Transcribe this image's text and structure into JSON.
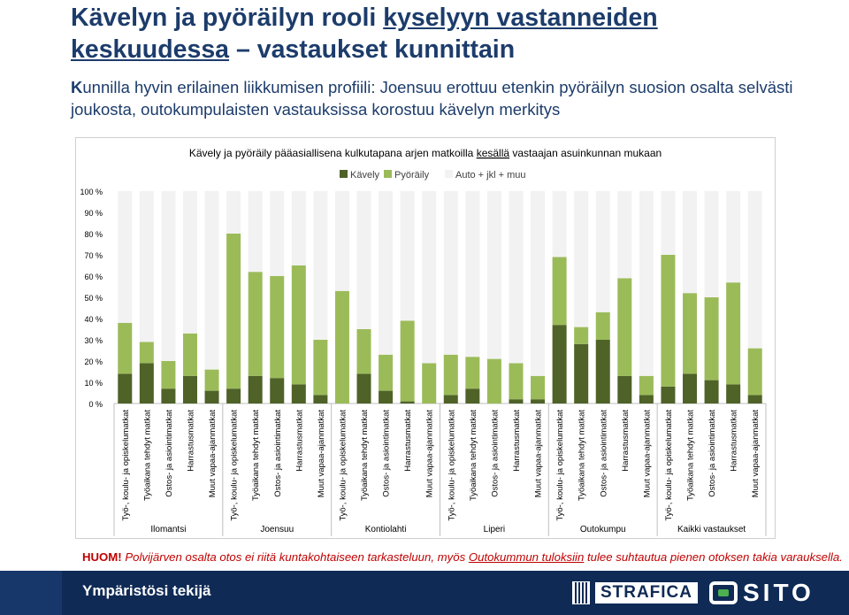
{
  "slide": {
    "title_part1": "Kävelyn ja pyöräilyn rooli ",
    "title_underlined": "kyselyyn vastanneiden",
    "title_line2": "keskuudessa",
    "title_part2": " – vastaukset kunnittain",
    "subtitle_first": "K",
    "subtitle_rest": "unnilla hyvin erilainen liikkumisen profiili: Joensuu erottuu etenkin pyöräilyn suosion osalta selvästi joukosta, outokumpulaisten vastauksissa korostuu kävelyn merkitys",
    "note_bold": "HUOM!",
    "note_rest": " Polvijärven osalta otos ei riitä kuntakohtaiseen tarkasteluun, myös ",
    "note_underlined": "Outokummun  tuloksiin",
    "note_end": " tulee suhtautua pienen otoksen takia varauksella.",
    "footer_text": "Ympäristösi tekijä",
    "logo_strafica": "STRAFICA",
    "logo_sito": "SITO"
  },
  "colors": {
    "kavely": "#4f6228",
    "pyoraily": "#9bbb59",
    "muu": "#f2f2f2",
    "title": "#1c3c6b",
    "note": "#c00000",
    "footer": "#0f2a55"
  },
  "chart_data": {
    "type": "bar",
    "stacked": true,
    "title_plain": "Kävely ja pyöräily pääasiallisena kulkutapana arjen matkoilla ",
    "title_underlined": "kesällä",
    "title_end": " vastaajan asuinkunnan mukaan",
    "legend_position": "top",
    "ylim": [
      0,
      100
    ],
    "yticks": [
      "100 %",
      "90 %",
      "80 %",
      "70 %",
      "60 %",
      "50 %",
      "40 %",
      "30 %",
      "20 %",
      "10 %",
      "0 %"
    ],
    "trip_types": [
      "Työ-, koulu- ja opiskelumatkat",
      "Työaikana tehdyt matkat",
      "Ostos- ja asiointimatkat",
      "Harrastusmatkat",
      "Muut vapaa-ajanmatkat"
    ],
    "groups": [
      "Ilomantsi",
      "Joensuu",
      "Kontiolahti",
      "Liperi",
      "Outokumpu",
      "Kaikki vastaukset"
    ],
    "series": [
      {
        "name": "Kävely",
        "color_key": "kavely",
        "values": [
          14,
          19,
          7,
          13,
          6,
          7,
          13,
          12,
          9,
          4,
          0,
          14,
          6,
          1,
          0,
          4,
          7,
          0,
          2,
          2,
          37,
          28,
          30,
          13,
          4,
          8,
          14,
          11,
          9,
          4
        ]
      },
      {
        "name": "Pyöräily",
        "color_key": "pyoraily",
        "values": [
          24,
          10,
          13,
          20,
          10,
          73,
          49,
          48,
          56,
          26,
          53,
          21,
          17,
          38,
          19,
          19,
          15,
          21,
          17,
          11,
          32,
          8,
          13,
          46,
          9,
          62,
          38,
          39,
          48,
          22
        ]
      },
      {
        "name": "Auto + jkl + muu",
        "color_key": "muu",
        "values": [
          62,
          71,
          80,
          67,
          84,
          20,
          38,
          40,
          35,
          70,
          47,
          65,
          77,
          61,
          81,
          77,
          78,
          79,
          81,
          87,
          31,
          64,
          57,
          41,
          87,
          30,
          48,
          50,
          43,
          74
        ]
      }
    ]
  }
}
